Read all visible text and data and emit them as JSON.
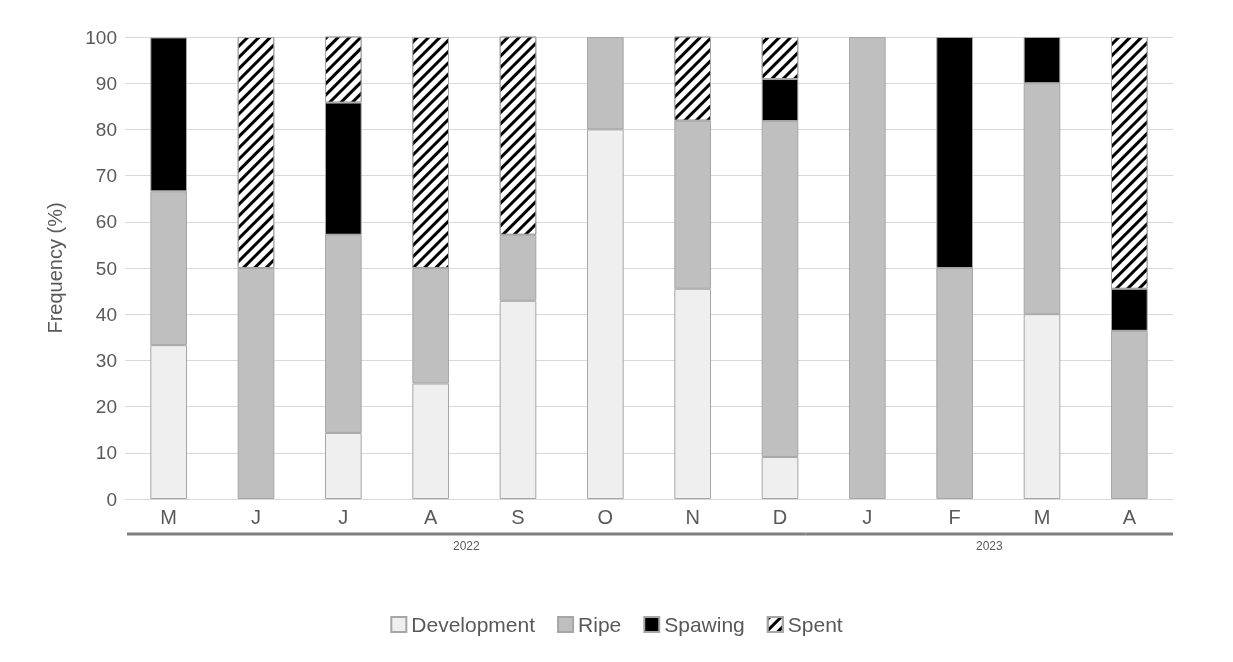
{
  "chart_data": {
    "type": "bar",
    "stacked": true,
    "ylabel": "Frequency (%)",
    "categories": [
      "M",
      "J",
      "J",
      "A",
      "S",
      "O",
      "N",
      "D",
      "J",
      "F",
      "M",
      "A"
    ],
    "series": [
      {
        "name": "Development",
        "color": "#efefef",
        "values": [
          33.3,
          0,
          14.3,
          25,
          42.9,
          80,
          45.5,
          9.1,
          0,
          0,
          40,
          0
        ]
      },
      {
        "name": "Ripe",
        "color": "#bfbfbf",
        "values": [
          33.3,
          50,
          42.9,
          25,
          14.3,
          20,
          36.4,
          72.7,
          100,
          50,
          50,
          36.4
        ]
      },
      {
        "name": "Spawing",
        "color": "#000000",
        "values": [
          33.3,
          0,
          28.6,
          0,
          0,
          0,
          0,
          9.1,
          0,
          50,
          10,
          9.1
        ]
      },
      {
        "name": "Spent",
        "color": "#ffffff",
        "values": [
          0,
          50,
          14.3,
          50,
          42.9,
          0,
          18.2,
          9.1,
          0,
          0,
          0,
          54.5
        ]
      }
    ],
    "ylim": [
      0,
      100
    ],
    "yticks": [
      0,
      10,
      20,
      30,
      40,
      50,
      60,
      70,
      80,
      90,
      100
    ],
    "grid": "y",
    "legend": "bottom",
    "annotations": [
      "2022",
      "2023"
    ]
  }
}
